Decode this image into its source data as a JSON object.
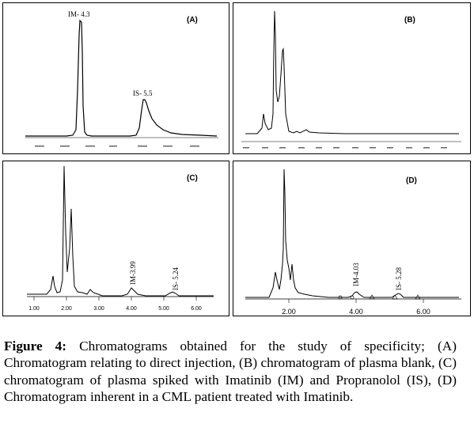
{
  "figure": {
    "panels": [
      {
        "id": "A",
        "label": "(A)",
        "peaks": [
          "IM- 4.3",
          "IS- 5.5"
        ],
        "ticks": []
      },
      {
        "id": "B",
        "label": "(B)",
        "peaks": [],
        "ticks": []
      },
      {
        "id": "C",
        "label": "(C)",
        "peaks": [
          "IM-3.99",
          "IS- 5.24"
        ],
        "ticks": [
          "1.00",
          "2.00",
          "3.00",
          "4.00",
          "5.00",
          "6.00"
        ]
      },
      {
        "id": "D",
        "label": "(D)",
        "peaks": [
          "IM-4.03",
          "IS- 5.28"
        ],
        "ticks": [
          "2.00",
          "4.00",
          "6.00"
        ]
      }
    ],
    "colors": {
      "trace": "#000000",
      "background": "#ffffff"
    }
  },
  "caption": {
    "prefix": "Figure 4:",
    "text": " Chromatograms obtained for the study of specificity; (A) Chromatogram relating to direct injection, (B) chromatogram of plasma blank, (C) chromatogram of plasma spiked with Imatinib (IM) and Propranolol (IS), (D) Chromatogram inherent in a CML patient treated with Imatinib."
  }
}
